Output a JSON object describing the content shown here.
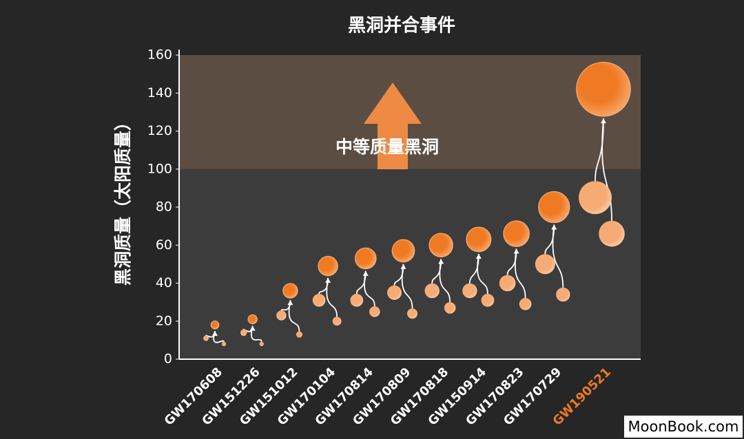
{
  "chart_data": {
    "type": "bubble-merger",
    "title": "黑洞并合事件",
    "y_label": "黑洞质量（太阳质量）",
    "annotation": "中等质量黑洞",
    "highlight_range": [
      100,
      160
    ],
    "highlight_index": 10,
    "highlight_color": "#f07a24",
    "watermark": "MoonBook.com",
    "categories": [
      "GW170608",
      "GW151226",
      "GW151012",
      "GW170104",
      "GW170814",
      "GW170809",
      "GW170818",
      "GW150914",
      "GW170823",
      "GW170729",
      "GW190521"
    ],
    "m1": [
      11,
      14,
      23,
      31,
      31,
      35,
      36,
      36,
      40,
      50,
      85
    ],
    "m2": [
      8,
      8,
      13,
      20,
      25,
      24,
      27,
      31,
      29,
      34,
      66
    ],
    "final": [
      18,
      21,
      36,
      49,
      53,
      57,
      60,
      63,
      66,
      80,
      142
    ],
    "final_color": "#f07a24",
    "component_color": "#f6b07c",
    "ylim": [
      0,
      160
    ],
    "yticks": [
      0,
      20,
      40,
      60,
      80,
      100,
      120,
      140,
      160
    ]
  }
}
